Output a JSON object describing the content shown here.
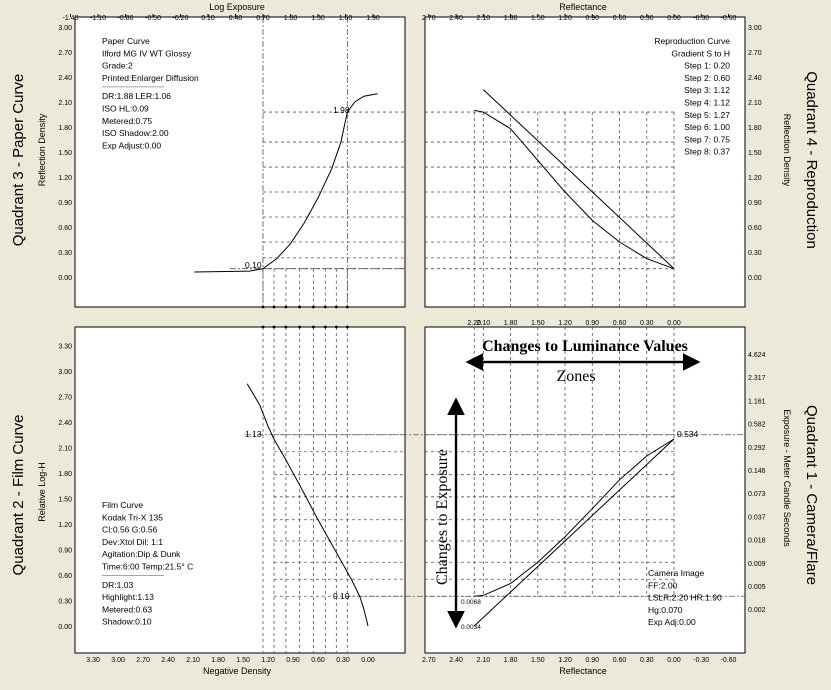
{
  "colors": {
    "background": "#ece9d8",
    "panel": "#ffffff",
    "ink": "#000000",
    "grid": "#555555"
  },
  "axes": {
    "top_left_title": "Log Exposure",
    "top_right_title": "Reflectance",
    "bottom_left_title": "Negative Density",
    "bottom_right_title": "Reflectance",
    "q3_ylabel": "Reflection Density",
    "q4_ylabel": "Reflection Density",
    "q2_ylabel": "Relative Log-H",
    "q1_ylabel": "Exposure - Meter Candle Seconds",
    "logexp_ticks": [
      "-1.40",
      "-1.10",
      "-0.80",
      "-0.50",
      "-0.20",
      "0.10",
      "0.40",
      "0.70",
      "1.00",
      "1.30",
      "1.60",
      "1.90"
    ],
    "refl_ticks": [
      "2.70",
      "2.40",
      "2.10",
      "1.80",
      "1.50",
      "1.20",
      "0.90",
      "0.60",
      "0.30",
      "0.00",
      "-0.30",
      "-0.60"
    ],
    "refl_mid_ticks": [
      "2.20",
      "2.10",
      "1.80",
      "1.50",
      "1.20",
      "0.90",
      "0.60",
      "0.30",
      "0.00"
    ],
    "negdens_ticks": [
      "3.30",
      "3.00",
      "2.70",
      "2.40",
      "2.10",
      "1.80",
      "1.50",
      "1.20",
      "0.90",
      "0.60",
      "0.30",
      "0.00"
    ],
    "refl_density_ticks": [
      "3.00",
      "2.70",
      "2.40",
      "2.10",
      "1.80",
      "1.50",
      "1.20",
      "0.90",
      "0.60",
      "0.30",
      "0.00"
    ],
    "loghl_ticks": [
      "3.30",
      "3.00",
      "2.70",
      "2.40",
      "2.10",
      "1.80",
      "1.50",
      "1.20",
      "0.90",
      "0.60",
      "0.30",
      "0.00"
    ],
    "mcs_ticks": [
      "4.624",
      "2.317",
      "1.161",
      "0.582",
      "0.292",
      "0.146",
      "0.073",
      "0.037",
      "0.018",
      "0.009",
      "0.005",
      "0.002"
    ]
  },
  "quadrant_labels": {
    "q3": "Quadrant 3 - Paper Curve",
    "q4": "Quadrant 4 - Reproduction",
    "q2": "Quadrant 2 - Film Curve",
    "q1": "Quadrant 1 - Camera/Flare"
  },
  "paper_info": [
    "Paper Curve",
    "Ilford MG IV WT  Glossy",
    "Grade:2",
    "Printed:Enlarger Diffusion",
    "DR:1.88  LER:1.06",
    "ISO HL:0.09",
    "Metered:0.75",
    "ISO Shadow:2.00",
    "Exp Adjust:0.00"
  ],
  "repro_info": [
    "Reproduction Curve",
    "Gradient S to H",
    "Step 1: 0.20",
    "Step 2: 0.60",
    "Step 3: 1.12",
    "Step 4: 1.12",
    "Step 5: 1.27",
    "Step 6: 1.00",
    "Step 7: 0.75",
    "Step 8: 0.37"
  ],
  "film_info": [
    "Film Curve",
    "Kodak Tri-X 135",
    "CI:0.56  G:0.56",
    "Dev:Xtol  Dil: 1:1",
    "Agitation:Dip & Dunk",
    "Time:6:00  Temp:21.5° C",
    "DR:1.03",
    "Highlight:1.13",
    "Metered:0.63",
    "Shadow:0.10"
  ],
  "camera_info": [
    "Camera Image",
    "FF:2.00",
    "LSLR:2.20  HR:1.90",
    "Hg:0.070",
    "Exp Adj:0.00"
  ],
  "annotations": {
    "luminance": "Changes to Luminance Values",
    "zones": "Zones",
    "exposure": "Changes to Exposure",
    "q3_high": "1.98",
    "q3_low": "0.10",
    "q2_high": "1.13",
    "q2_low": "0.10",
    "q1_high": "0.534",
    "q1_low1": "0.0068",
    "q1_low2": "0.0034"
  },
  "chart_data": [
    {
      "type": "line",
      "title": "Paper Curve",
      "xlabel": "Log Exposure",
      "ylabel": "Reflection Density",
      "xlim": [
        -1.4,
        1.9
      ],
      "ylim": [
        0,
        3.0
      ],
      "series": [
        {
          "name": "Ilford MG IV WT  Glossy",
          "points": [
            [
              -0.05,
              0.06
            ],
            [
              0.55,
              0.07
            ],
            [
              0.7,
              0.1
            ],
            [
              0.85,
              0.22
            ],
            [
              1.0,
              0.4
            ],
            [
              1.15,
              0.65
            ],
            [
              1.3,
              0.95
            ],
            [
              1.45,
              1.3
            ],
            [
              1.55,
              1.62
            ],
            [
              1.62,
              1.98
            ],
            [
              1.7,
              2.1
            ],
            [
              1.8,
              2.17
            ],
            [
              1.95,
              2.2
            ]
          ]
        }
      ]
    },
    {
      "type": "line",
      "title": "Reproduction Curve",
      "xlabel": "Reflectance",
      "ylabel": "Reflection Density",
      "xlim": [
        2.7,
        -0.6
      ],
      "ylim": [
        0,
        3.0
      ],
      "series": [
        {
          "name": "",
          "points": [
            [
              2.2,
              2.0
            ],
            [
              2.1,
              1.98
            ],
            [
              1.8,
              1.78
            ],
            [
              1.5,
              1.4
            ],
            [
              1.2,
              1.02
            ],
            [
              0.9,
              0.68
            ],
            [
              0.6,
              0.42
            ],
            [
              0.3,
              0.22
            ],
            [
              0.0,
              0.1
            ]
          ]
        },
        {
          "name": "",
          "points": [
            [
              2.1,
              2.25
            ],
            [
              0.0,
              0.1
            ]
          ]
        }
      ]
    },
    {
      "type": "line",
      "title": "Film Curve",
      "xlabel": "Negative Density",
      "ylabel": "Relative Log-H",
      "xlim": [
        3.3,
        -0.3
      ],
      "ylim": [
        0,
        3.5
      ],
      "series": [
        {
          "name": "Kodak Tri-X 135",
          "points": [
            [
              1.45,
              2.85
            ],
            [
              1.3,
              2.6
            ],
            [
              1.2,
              2.35
            ],
            [
              1.13,
              2.2
            ],
            [
              1.0,
              1.98
            ],
            [
              0.8,
              1.62
            ],
            [
              0.6,
              1.25
            ],
            [
              0.4,
              0.9
            ],
            [
              0.2,
              0.55
            ],
            [
              0.1,
              0.35
            ],
            [
              0.05,
              0.2
            ],
            [
              0.0,
              0.0
            ]
          ]
        }
      ]
    },
    {
      "type": "line",
      "title": "Camera Image",
      "xlabel": "Reflectance",
      "ylabel": "Exposure - Meter Candle Seconds",
      "xlim": [
        2.7,
        -0.6
      ],
      "series": [
        {
          "name": "",
          "points": [
            [
              2.2,
              0.35
            ],
            [
              2.1,
              0.36
            ],
            [
              1.8,
              0.5
            ],
            [
              1.5,
              0.75
            ],
            [
              1.2,
              1.05
            ],
            [
              0.9,
              1.38
            ],
            [
              0.6,
              1.72
            ],
            [
              0.3,
              2.0
            ],
            [
              0.0,
              2.2
            ]
          ]
        },
        {
          "name": "",
          "points": [
            [
              2.2,
              0.0
            ],
            [
              0.0,
              2.2
            ]
          ]
        }
      ]
    }
  ]
}
